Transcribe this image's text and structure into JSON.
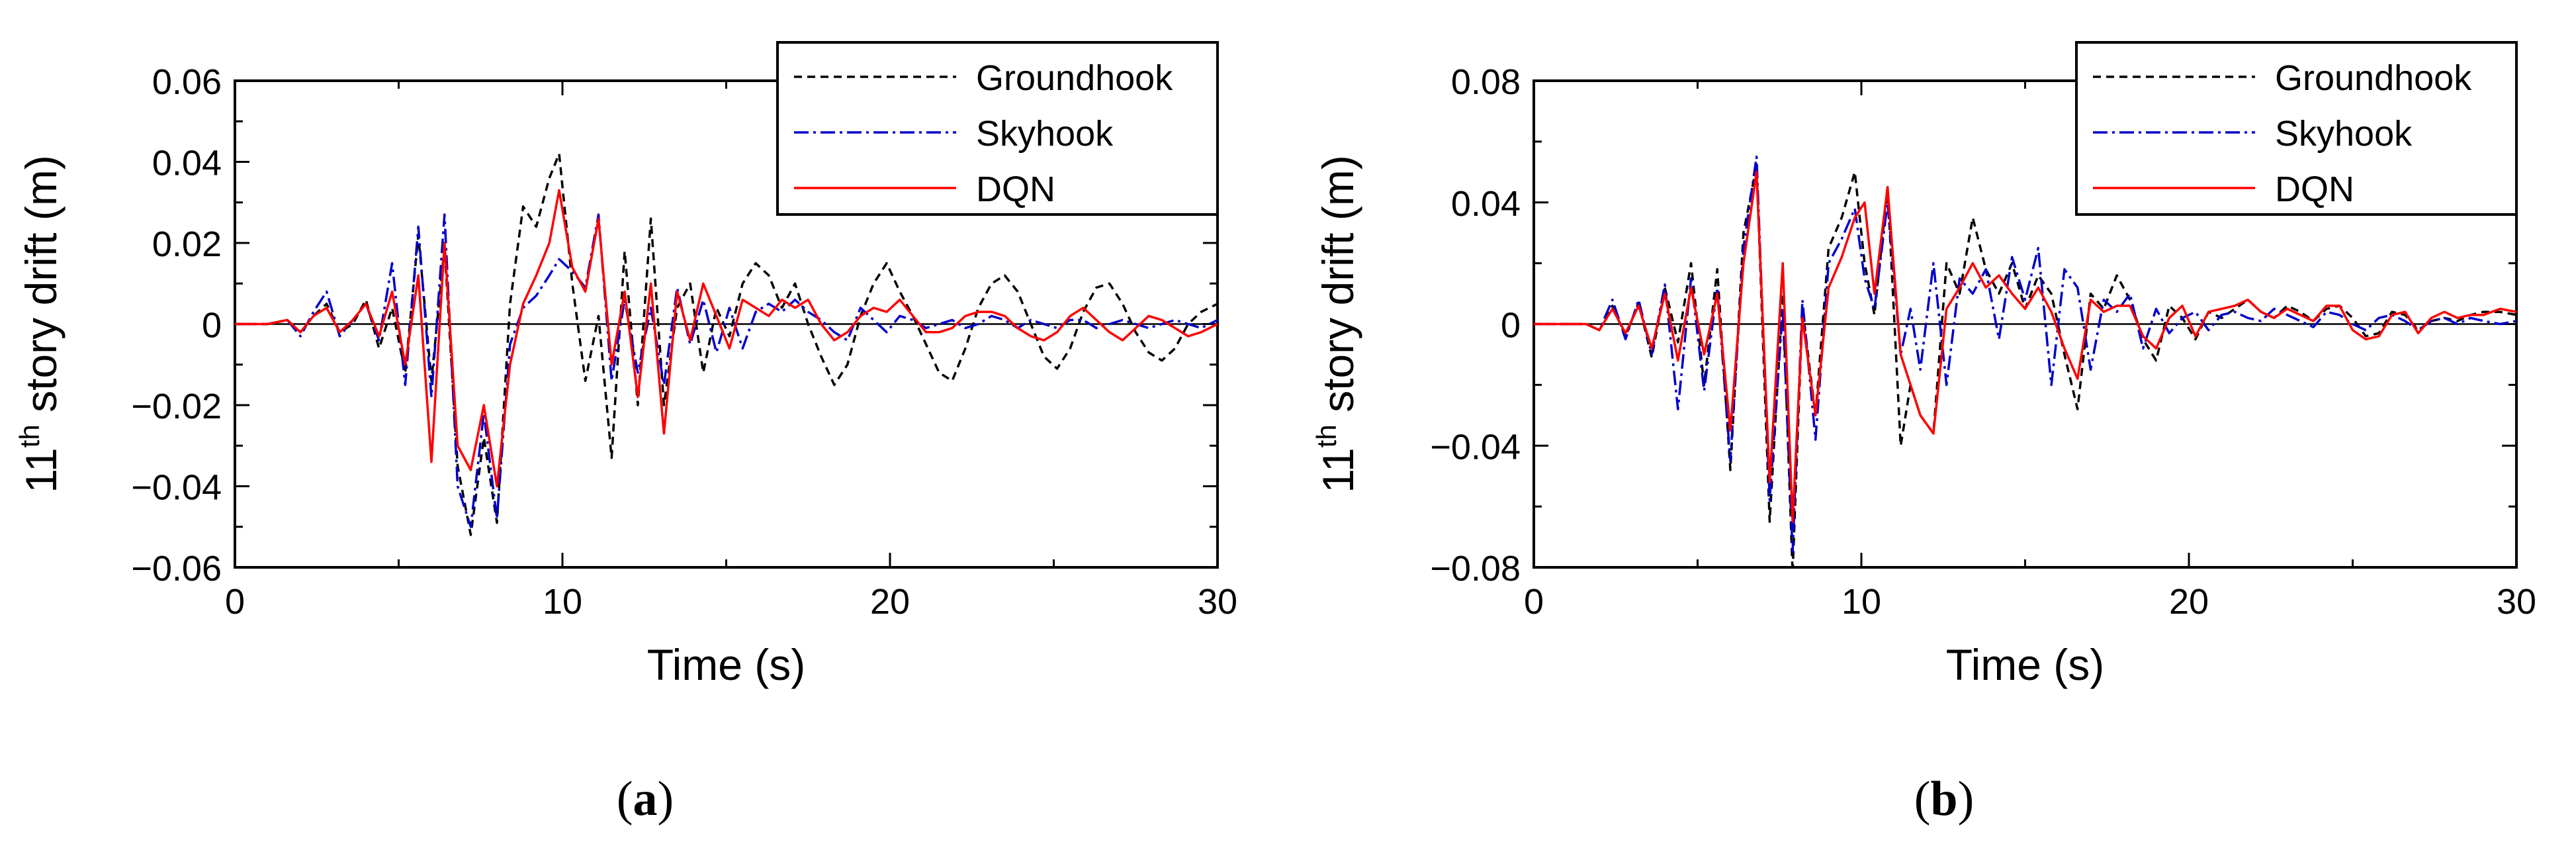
{
  "chart_data": [
    {
      "type": "line",
      "panel": "a",
      "caption_open": "(",
      "caption_letter": "a",
      "caption_close": ")",
      "xlabel": "Time (s)",
      "ylabel_prefix": "11",
      "ylabel_sup": "th",
      "ylabel_suffix": " story drift (m)",
      "xlim": [
        0,
        30
      ],
      "ylim": [
        -0.06,
        0.06
      ],
      "xticks": [
        0,
        10,
        20,
        30
      ],
      "xtick_labels": [
        "0",
        "10",
        "20",
        "30"
      ],
      "yticks": [
        -0.06,
        -0.04,
        -0.02,
        0,
        0.02,
        0.04,
        0.06
      ],
      "ytick_labels": [
        "−0.06",
        "−0.04",
        "−0.02",
        "0",
        "0.02",
        "0.04",
        "0.06"
      ],
      "legend_position": "top-right",
      "zero_line": true,
      "series": [
        {
          "name": "Groundhook",
          "color": "#000000",
          "style": "dashed",
          "x": [
            0,
            1,
            1.6,
            2,
            2.4,
            2.8,
            3.2,
            3.6,
            4,
            4.4,
            4.8,
            5.2,
            5.6,
            6,
            6.4,
            6.8,
            7.2,
            7.6,
            8,
            8.4,
            8.8,
            9.2,
            9.6,
            9.9,
            10.3,
            10.7,
            11.1,
            11.5,
            11.9,
            12.3,
            12.7,
            13.1,
            13.5,
            13.9,
            14.3,
            14.7,
            15.1,
            15.5,
            15.9,
            16.3,
            16.7,
            17.1,
            17.5,
            17.9,
            18.3,
            18.7,
            19.1,
            19.5,
            19.9,
            20.3,
            20.7,
            21.1,
            21.5,
            21.9,
            22.3,
            22.7,
            23.1,
            23.5,
            23.9,
            24.3,
            24.7,
            25.1,
            25.5,
            25.9,
            26.3,
            26.7,
            27.1,
            27.5,
            27.9,
            28.3,
            28.7,
            29.1,
            29.5,
            30
          ],
          "y": [
            0,
            0,
            0.001,
            -0.002,
            0.002,
            0.005,
            -0.002,
            0,
            0.006,
            -0.006,
            0.004,
            -0.012,
            0.022,
            -0.014,
            0.019,
            -0.035,
            -0.052,
            -0.028,
            -0.049,
            0.005,
            0.029,
            0.024,
            0.036,
            0.042,
            0.01,
            -0.014,
            0.002,
            -0.033,
            0.018,
            -0.02,
            0.026,
            -0.02,
            0.004,
            0.01,
            -0.012,
            0.004,
            -0.003,
            0.01,
            0.015,
            0.012,
            0.004,
            0.01,
            0,
            -0.008,
            -0.015,
            -0.01,
            0.002,
            0.01,
            0.015,
            0.008,
            0.002,
            -0.005,
            -0.012,
            -0.014,
            -0.006,
            0.004,
            0.01,
            0.012,
            0.008,
            0,
            -0.008,
            -0.011,
            -0.006,
            0.003,
            0.009,
            0.01,
            0.005,
            -0.002,
            -0.007,
            -0.009,
            -0.006,
            0,
            0.003,
            0.005
          ]
        },
        {
          "name": "Skyhook",
          "color": "#0000cc",
          "style": "dash-dot",
          "x": [
            0,
            1,
            1.6,
            2,
            2.4,
            2.8,
            3.2,
            3.6,
            4,
            4.4,
            4.8,
            5.2,
            5.6,
            6,
            6.4,
            6.8,
            7.2,
            7.6,
            8,
            8.4,
            8.8,
            9.2,
            9.6,
            9.9,
            10.3,
            10.7,
            11.1,
            11.5,
            11.9,
            12.3,
            12.7,
            13.1,
            13.5,
            13.9,
            14.3,
            14.7,
            15.1,
            15.5,
            15.9,
            16.3,
            16.7,
            17.1,
            17.5,
            17.9,
            18.3,
            18.7,
            19.1,
            19.5,
            19.9,
            20.3,
            20.7,
            21.1,
            21.5,
            21.9,
            22.3,
            22.7,
            23.1,
            23.5,
            23.9,
            24.3,
            24.7,
            25.1,
            25.5,
            25.9,
            26.3,
            26.7,
            27.1,
            27.5,
            27.9,
            28.3,
            28.7,
            29.1,
            29.5,
            30
          ],
          "y": [
            0,
            0,
            0.001,
            -0.003,
            0.003,
            0.008,
            -0.003,
            0.001,
            0.005,
            -0.004,
            0.015,
            -0.015,
            0.024,
            -0.018,
            0.027,
            -0.04,
            -0.05,
            -0.022,
            -0.048,
            -0.005,
            0.004,
            0.007,
            0.012,
            0.016,
            0.013,
            0.009,
            0.027,
            -0.014,
            0.006,
            -0.012,
            0.004,
            -0.015,
            0.009,
            -0.005,
            0.006,
            -0.007,
            0.004,
            -0.006,
            0.003,
            0.005,
            0.003,
            0.006,
            0.003,
            0.001,
            -0.002,
            -0.004,
            0.004,
            0.001,
            -0.002,
            0.002,
            0.001,
            -0.001,
            0,
            0.001,
            -0.001,
            0,
            0.002,
            0.001,
            -0.001,
            0.001,
            0,
            -0.001,
            0.001,
            0.001,
            -0.001,
            0,
            0.001,
            0,
            -0.001,
            0,
            0.001,
            0,
            -0.001,
            0.001
          ]
        },
        {
          "name": "DQN",
          "color": "#ff0000",
          "style": "solid",
          "x": [
            0,
            1,
            1.6,
            2,
            2.4,
            2.8,
            3.2,
            3.6,
            4,
            4.4,
            4.8,
            5.2,
            5.6,
            6,
            6.4,
            6.8,
            7.2,
            7.6,
            8,
            8.4,
            8.8,
            9.2,
            9.6,
            9.9,
            10.3,
            10.7,
            11.1,
            11.5,
            11.9,
            12.3,
            12.7,
            13.1,
            13.5,
            13.9,
            14.3,
            14.7,
            15.1,
            15.5,
            15.9,
            16.3,
            16.7,
            17.1,
            17.5,
            17.9,
            18.3,
            18.7,
            19.1,
            19.5,
            19.9,
            20.3,
            20.7,
            21.1,
            21.5,
            21.9,
            22.3,
            22.7,
            23.1,
            23.5,
            23.9,
            24.3,
            24.7,
            25.1,
            25.5,
            25.9,
            26.3,
            26.7,
            27.1,
            27.5,
            27.9,
            28.3,
            28.7,
            29.1,
            29.5,
            30
          ],
          "y": [
            0,
            0,
            0.001,
            -0.002,
            0.002,
            0.004,
            -0.002,
            0.001,
            0.005,
            -0.003,
            0.008,
            -0.01,
            0.012,
            -0.034,
            0.02,
            -0.03,
            -0.036,
            -0.02,
            -0.04,
            -0.01,
            0.005,
            0.012,
            0.02,
            0.033,
            0.014,
            0.008,
            0.026,
            -0.01,
            0.008,
            -0.018,
            0.01,
            -0.027,
            0.008,
            -0.004,
            0.01,
            0.002,
            -0.006,
            0.006,
            0.004,
            0.002,
            0.006,
            0.004,
            0.006,
            0,
            -0.004,
            -0.002,
            0.002,
            0.004,
            0.003,
            0.006,
            0.002,
            -0.002,
            -0.002,
            -0.001,
            0.002,
            0.003,
            0.003,
            0.002,
            -0.001,
            -0.003,
            -0.004,
            -0.002,
            0.002,
            0.004,
            0.001,
            -0.002,
            -0.004,
            -0.001,
            0.002,
            0.001,
            -0.001,
            -0.003,
            -0.002,
            0
          ]
        }
      ]
    },
    {
      "type": "line",
      "panel": "b",
      "caption_open": "(",
      "caption_letter": "b",
      "caption_close": ")",
      "xlabel": "Time (s)",
      "ylabel_prefix": "11",
      "ylabel_sup": "th",
      "ylabel_suffix": " story drift (m)",
      "xlim": [
        0,
        30
      ],
      "ylim": [
        -0.08,
        0.08
      ],
      "xticks": [
        0,
        10,
        20,
        30
      ],
      "xtick_labels": [
        "0",
        "10",
        "20",
        "30"
      ],
      "yticks": [
        -0.08,
        -0.04,
        0,
        0.04,
        0.08
      ],
      "ytick_labels": [
        "−0.08",
        "−0.04",
        "0",
        "0.04",
        "0.08"
      ],
      "legend_position": "top-right",
      "zero_line": true,
      "series": [
        {
          "name": "Groundhook",
          "color": "#000000",
          "style": "dashed",
          "x": [
            0,
            1,
            1.6,
            2,
            2.4,
            2.8,
            3.2,
            3.6,
            4,
            4.4,
            4.8,
            5.2,
            5.6,
            6,
            6.4,
            6.8,
            7.2,
            7.6,
            7.9,
            8.2,
            8.6,
            9,
            9.4,
            9.8,
            10.1,
            10.4,
            10.8,
            11.2,
            11.5,
            11.8,
            12.2,
            12.6,
            13,
            13.4,
            13.8,
            14.2,
            14.6,
            15,
            15.4,
            15.8,
            16.2,
            16.6,
            17,
            17.4,
            17.8,
            18.2,
            18.6,
            19,
            19.4,
            19.8,
            20.2,
            20.6,
            21,
            21.4,
            21.8,
            22.2,
            22.6,
            23,
            23.4,
            23.8,
            24.2,
            24.6,
            25,
            25.4,
            25.8,
            26.2,
            26.6,
            27,
            27.4,
            27.8,
            28.2,
            28.6,
            29,
            29.5,
            30
          ],
          "y": [
            0,
            0,
            0,
            -0.002,
            0.006,
            -0.004,
            0.007,
            -0.011,
            0.012,
            -0.006,
            0.02,
            -0.02,
            0.018,
            -0.048,
            0.03,
            0.052,
            -0.065,
            0.01,
            -0.082,
            0.005,
            -0.03,
            0.025,
            0.035,
            0.05,
            0.02,
            0.003,
            0.045,
            -0.04,
            -0.02,
            -0.03,
            -0.036,
            0.02,
            0.01,
            0.035,
            0.018,
            0.01,
            0.02,
            0.005,
            0.016,
            0.01,
            -0.01,
            -0.028,
            0.01,
            0.005,
            0.016,
            0.008,
            -0.005,
            -0.012,
            0.006,
            0.002,
            -0.005,
            0.004,
            0.002,
            0.005,
            0.008,
            0.004,
            0.002,
            0.006,
            0.004,
            0.001,
            0.005,
            0.006,
            0.002,
            -0.004,
            -0.003,
            0.004,
            0.003,
            -0.002,
            0.001,
            0.002,
            0.001,
            0.003,
            0.004,
            0.004,
            0.003
          ]
        },
        {
          "name": "Skyhook",
          "color": "#0000cc",
          "style": "dash-dot",
          "x": [
            0,
            1,
            1.6,
            2,
            2.4,
            2.8,
            3.2,
            3.6,
            4,
            4.4,
            4.8,
            5.2,
            5.6,
            6,
            6.4,
            6.8,
            7.2,
            7.6,
            7.9,
            8.2,
            8.6,
            9,
            9.4,
            9.8,
            10.1,
            10.4,
            10.8,
            11.2,
            11.5,
            11.8,
            12.2,
            12.6,
            13,
            13.4,
            13.8,
            14.2,
            14.6,
            15,
            15.4,
            15.8,
            16.2,
            16.6,
            17,
            17.4,
            17.8,
            18.2,
            18.6,
            19,
            19.4,
            19.8,
            20.2,
            20.6,
            21,
            21.4,
            21.8,
            22.2,
            22.6,
            23,
            23.4,
            23.8,
            24.2,
            24.6,
            25,
            25.4,
            25.8,
            26.2,
            26.6,
            27,
            27.4,
            27.8,
            28.2,
            28.6,
            29,
            29.5,
            30
          ],
          "y": [
            0,
            0,
            0,
            -0.002,
            0.008,
            -0.005,
            0.008,
            -0.01,
            0.013,
            -0.028,
            0.015,
            -0.022,
            0.012,
            -0.045,
            0.025,
            0.055,
            -0.058,
            0.005,
            -0.075,
            0.008,
            -0.038,
            0.02,
            0.028,
            0.038,
            0.015,
            0.005,
            0.04,
            -0.01,
            0.005,
            -0.015,
            0.02,
            -0.02,
            0.015,
            0.01,
            0.018,
            -0.005,
            0.022,
            0.008,
            0.025,
            -0.02,
            0.018,
            0.012,
            -0.015,
            0.008,
            0.004,
            0.01,
            -0.008,
            0.005,
            -0.003,
            0.002,
            0.004,
            -0.002,
            0.003,
            0.004,
            0.002,
            0.001,
            0.005,
            0.003,
            0.001,
            -0.001,
            0.004,
            0.003,
            0,
            -0.002,
            0.002,
            0.003,
            0.001,
            -0.002,
            0.001,
            0.002,
            0,
            0.002,
            0.001,
            0,
            0.001
          ]
        },
        {
          "name": "DQN",
          "color": "#ff0000",
          "style": "solid",
          "x": [
            0,
            1,
            1.6,
            2,
            2.4,
            2.8,
            3.2,
            3.6,
            4,
            4.4,
            4.8,
            5.2,
            5.6,
            6,
            6.4,
            6.8,
            7.2,
            7.6,
            7.9,
            8.2,
            8.6,
            9,
            9.4,
            9.8,
            10.1,
            10.4,
            10.8,
            11.2,
            11.5,
            11.8,
            12.2,
            12.6,
            13,
            13.4,
            13.8,
            14.2,
            14.6,
            15,
            15.4,
            15.8,
            16.2,
            16.6,
            17,
            17.4,
            17.8,
            18.2,
            18.6,
            19,
            19.4,
            19.8,
            20.2,
            20.6,
            21,
            21.4,
            21.8,
            22.2,
            22.6,
            23,
            23.4,
            23.8,
            24.2,
            24.6,
            25,
            25.4,
            25.8,
            26.2,
            26.6,
            27,
            27.4,
            27.8,
            28.2,
            28.6,
            29,
            29.5,
            30
          ],
          "y": [
            0,
            0,
            0,
            -0.002,
            0.005,
            -0.003,
            0.006,
            -0.008,
            0.01,
            -0.012,
            0.012,
            -0.01,
            0.01,
            -0.035,
            0.02,
            0.05,
            -0.052,
            0.02,
            -0.065,
            0.002,
            -0.03,
            0.012,
            0.022,
            0.035,
            0.04,
            0.01,
            0.045,
            -0.01,
            -0.02,
            -0.03,
            -0.036,
            0.005,
            0.012,
            0.02,
            0.012,
            0.016,
            0.01,
            0.005,
            0.012,
            0.004,
            -0.008,
            -0.018,
            0.008,
            0.004,
            0.006,
            0.006,
            -0.004,
            -0.008,
            0.002,
            0.006,
            -0.004,
            0.004,
            0.005,
            0.006,
            0.008,
            0.004,
            0.002,
            0.005,
            0.003,
            0.001,
            0.006,
            0.006,
            -0.002,
            -0.005,
            -0.004,
            0.003,
            0.004,
            -0.003,
            0.002,
            0.004,
            0.002,
            0.003,
            0.003,
            0.005,
            0.004
          ]
        }
      ]
    }
  ]
}
